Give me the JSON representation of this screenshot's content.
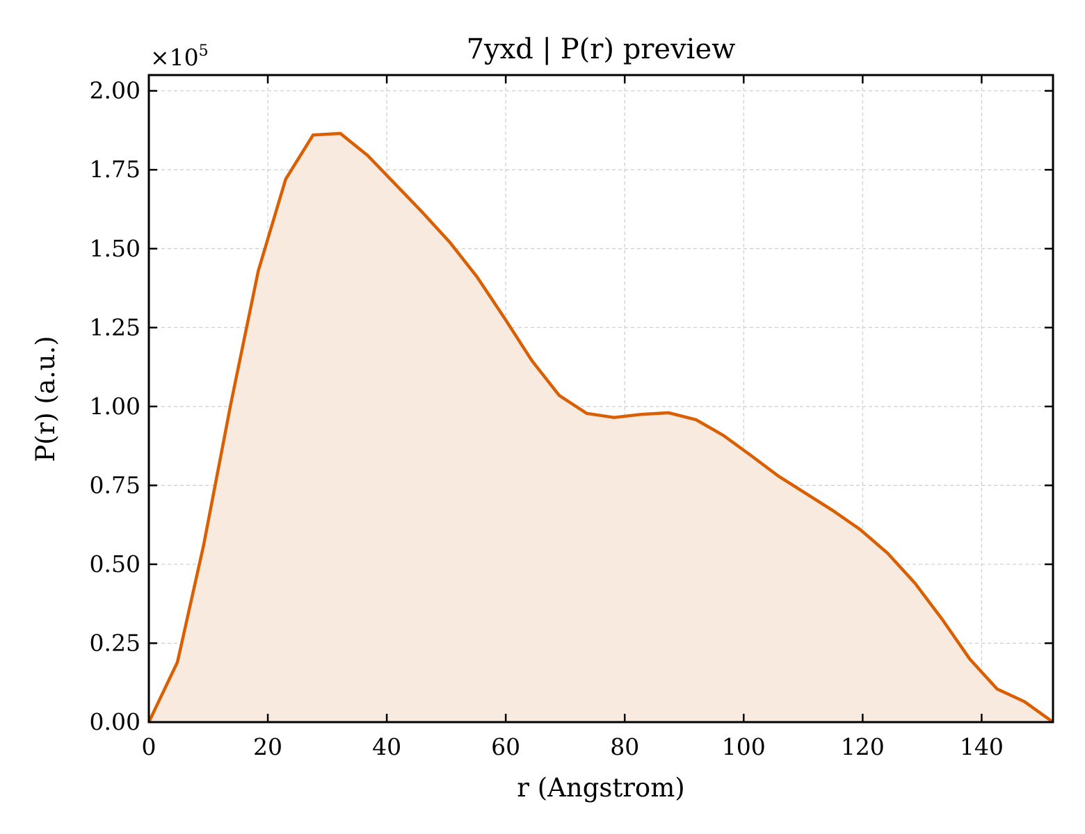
{
  "chart_data": {
    "type": "area",
    "title": "7yxd | P(r) preview",
    "xlabel": "r (Angstrom)",
    "ylabel": "P(r) (a.u.)",
    "y_multiplier_label": "×10",
    "y_multiplier_exponent": "5",
    "xlim": [
      0,
      152
    ],
    "ylim": [
      0,
      2.05
    ],
    "y_scale_factor": 100000,
    "x_ticks": [
      0,
      20,
      40,
      60,
      80,
      100,
      120,
      140
    ],
    "x_tick_labels": [
      "0",
      "20",
      "40",
      "60",
      "80",
      "100",
      "120",
      "140"
    ],
    "y_ticks": [
      0,
      0.25,
      0.5,
      0.75,
      1.0,
      1.25,
      1.5,
      1.75,
      2.0
    ],
    "y_tick_labels": [
      "0.00",
      "0.25",
      "0.50",
      "0.75",
      "1.00",
      "1.25",
      "1.50",
      "1.75",
      "2.00"
    ],
    "grid": true,
    "line_color": "#d95f02",
    "fill_color": "#f9eadf",
    "series": [
      {
        "x": [
          0,
          4.8,
          9.2,
          13.8,
          18.4,
          23.0,
          27.6,
          32.2,
          36.8,
          41.4,
          46.0,
          50.6,
          55.2,
          59.8,
          64.4,
          69.0,
          73.6,
          78.2,
          82.8,
          87.4,
          92.0,
          96.6,
          101.2,
          105.8,
          110.4,
          115.0,
          119.6,
          124.2,
          128.8,
          133.4,
          138.0,
          142.6,
          147.2,
          152.0
        ],
        "y": [
          0.0,
          0.19,
          0.56,
          1.01,
          1.43,
          1.72,
          1.86,
          1.865,
          1.795,
          1.705,
          1.615,
          1.52,
          1.41,
          1.28,
          1.145,
          1.035,
          0.978,
          0.965,
          0.975,
          0.98,
          0.958,
          0.908,
          0.845,
          0.78,
          0.725,
          0.67,
          0.61,
          0.535,
          0.44,
          0.325,
          0.2,
          0.105,
          0.065,
          0.0
        ]
      }
    ]
  }
}
